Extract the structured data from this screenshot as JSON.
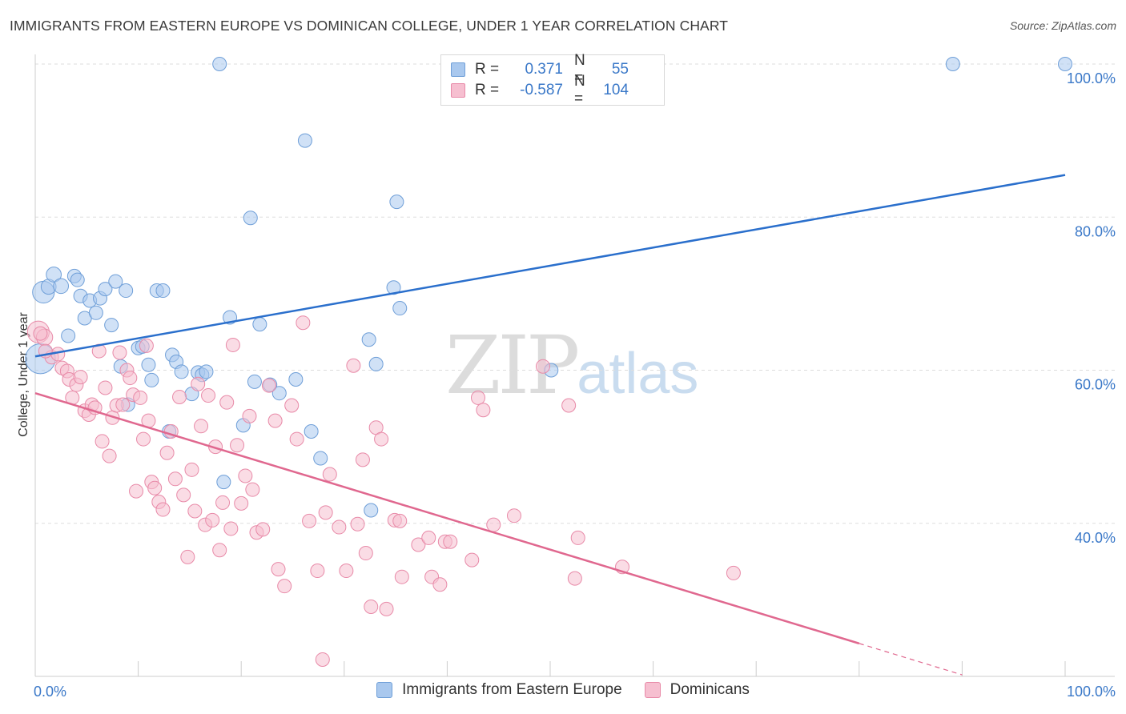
{
  "title": "IMMIGRANTS FROM EASTERN EUROPE VS DOMINICAN COLLEGE, UNDER 1 YEAR CORRELATION CHART",
  "source": "Source: ZipAtlas.com",
  "watermark": {
    "zip": "ZIP",
    "atlas": "atlas"
  },
  "legend": {
    "rows": [
      {
        "r_label": "R =",
        "r_value": "0.371",
        "n_label": "N =",
        "n_value": "55",
        "color": "#a9c8ee",
        "border": "#6f9fd8"
      },
      {
        "r_label": "R =",
        "r_value": "-0.587",
        "n_label": "N =",
        "n_value": "104",
        "color": "#f6bfd0",
        "border": "#e88aa8"
      }
    ]
  },
  "bottom_legend": [
    {
      "label": "Immigrants from Eastern Europe",
      "color": "#a9c8ee",
      "border": "#6f9fd8"
    },
    {
      "label": "Dominicans",
      "color": "#f6bfd0",
      "border": "#e88aa8"
    }
  ],
  "chart_data": {
    "type": "scatter",
    "title": "IMMIGRANTS FROM EASTERN EUROPE VS DOMINICAN COLLEGE, UNDER 1 YEAR CORRELATION CHART",
    "xlabel": "",
    "ylabel": "College, Under 1 year",
    "xlim": [
      0,
      100
    ],
    "ylim": [
      20,
      100
    ],
    "x_tick_labels": [
      "0.0%",
      "100.0%"
    ],
    "y_tick_labels": [
      "40.0%",
      "60.0%",
      "80.0%",
      "100.0%"
    ],
    "y_ticks": [
      40,
      60,
      80,
      100
    ],
    "grid": true,
    "legend_position": "top-center",
    "series": [
      {
        "name": "Immigrants from Eastern Europe",
        "color": "#6f9fd8",
        "fill": "#a9c8ee",
        "trend": {
          "x": [
            0,
            100
          ],
          "y": [
            61.8,
            85.5
          ],
          "color": "#2a6fcc"
        },
        "points": [
          [
            0.5,
            61.5,
            2.2
          ],
          [
            0.8,
            70.2,
            1.6
          ],
          [
            1.3,
            70.9,
            1.1
          ],
          [
            1.8,
            72.5,
            1.1
          ],
          [
            2.5,
            71.0,
            1.1
          ],
          [
            3.2,
            64.5,
            1.0
          ],
          [
            3.8,
            72.3,
            1.0
          ],
          [
            4.1,
            71.8,
            1.0
          ],
          [
            4.4,
            69.7,
            1.0
          ],
          [
            4.8,
            66.8,
            1.0
          ],
          [
            5.3,
            69.1,
            1.0
          ],
          [
            5.9,
            67.5,
            1.0
          ],
          [
            6.3,
            69.4,
            1.0
          ],
          [
            6.8,
            70.6,
            1.0
          ],
          [
            7.4,
            65.9,
            1.0
          ],
          [
            7.8,
            71.6,
            1.0
          ],
          [
            8.3,
            60.5,
            1.0
          ],
          [
            8.8,
            70.4,
            1.0
          ],
          [
            9.0,
            55.5,
            1.0
          ],
          [
            10.0,
            62.9,
            1.0
          ],
          [
            10.4,
            63.1,
            1.0
          ],
          [
            11.0,
            60.7,
            1.0
          ],
          [
            11.3,
            58.7,
            1.0
          ],
          [
            11.8,
            70.4,
            1.0
          ],
          [
            12.4,
            70.4,
            1.0
          ],
          [
            13.0,
            52.0,
            1.0
          ],
          [
            13.3,
            62.0,
            1.0
          ],
          [
            13.7,
            61.1,
            1.0
          ],
          [
            14.2,
            59.8,
            1.0
          ],
          [
            15.2,
            56.9,
            1.0
          ],
          [
            15.8,
            59.7,
            1.0
          ],
          [
            16.2,
            59.4,
            1.0
          ],
          [
            16.6,
            59.8,
            1.0
          ],
          [
            17.9,
            100.0,
            1.0
          ],
          [
            18.3,
            45.4,
            1.0
          ],
          [
            18.9,
            66.9,
            1.0
          ],
          [
            20.2,
            52.8,
            1.0
          ],
          [
            20.9,
            79.9,
            1.0
          ],
          [
            21.3,
            58.5,
            1.0
          ],
          [
            21.8,
            66.0,
            1.0
          ],
          [
            22.8,
            58.1,
            1.0
          ],
          [
            23.7,
            57.0,
            1.0
          ],
          [
            25.3,
            58.8,
            1.0
          ],
          [
            26.2,
            90.0,
            1.0
          ],
          [
            26.8,
            52.0,
            1.0
          ],
          [
            27.7,
            48.5,
            1.0
          ],
          [
            32.4,
            64.0,
            1.0
          ],
          [
            32.6,
            41.7,
            1.0
          ],
          [
            33.1,
            60.8,
            1.0
          ],
          [
            34.8,
            70.8,
            1.0
          ],
          [
            35.1,
            82.0,
            1.0
          ],
          [
            35.4,
            68.1,
            1.0
          ],
          [
            50.1,
            60.0,
            1.0
          ],
          [
            89.1,
            100.0,
            1.0
          ],
          [
            100.0,
            100.0,
            1.0
          ]
        ]
      },
      {
        "name": "Dominicans",
        "color": "#e88aa8",
        "fill": "#f6bfd0",
        "trend": {
          "x": [
            0,
            80
          ],
          "y": [
            57.0,
            24.3
          ],
          "dashed_to": [
            90,
            20.2
          ],
          "color": "#e0688f"
        },
        "points": [
          [
            0.3,
            65.0,
            1.6
          ],
          [
            0.9,
            64.3,
            1.2
          ],
          [
            1.6,
            61.7,
            1.0
          ],
          [
            2.2,
            62.1,
            1.0
          ],
          [
            2.6,
            60.3,
            1.0
          ],
          [
            3.1,
            59.9,
            1.0
          ],
          [
            3.3,
            58.8,
            1.0
          ],
          [
            3.6,
            56.4,
            1.0
          ],
          [
            4.0,
            58.1,
            1.0
          ],
          [
            4.4,
            59.1,
            1.0
          ],
          [
            4.8,
            54.7,
            1.0
          ],
          [
            5.2,
            54.2,
            1.0
          ],
          [
            5.5,
            55.5,
            1.0
          ],
          [
            5.8,
            55.1,
            1.0
          ],
          [
            6.2,
            62.5,
            1.0
          ],
          [
            6.5,
            50.7,
            1.0
          ],
          [
            6.8,
            57.7,
            1.0
          ],
          [
            7.2,
            48.8,
            1.0
          ],
          [
            7.5,
            53.8,
            1.0
          ],
          [
            7.9,
            55.4,
            1.0
          ],
          [
            8.2,
            62.3,
            1.0
          ],
          [
            8.5,
            55.5,
            1.0
          ],
          [
            8.9,
            60.0,
            1.0
          ],
          [
            9.2,
            59.0,
            1.0
          ],
          [
            9.5,
            56.8,
            1.0
          ],
          [
            9.8,
            44.2,
            1.0
          ],
          [
            10.2,
            56.4,
            1.0
          ],
          [
            10.5,
            51.0,
            1.0
          ],
          [
            10.8,
            63.2,
            1.0
          ],
          [
            11.0,
            53.4,
            1.0
          ],
          [
            11.3,
            45.4,
            1.0
          ],
          [
            11.6,
            44.6,
            1.0
          ],
          [
            12.0,
            42.8,
            1.0
          ],
          [
            12.4,
            41.8,
            1.0
          ],
          [
            12.8,
            49.2,
            1.0
          ],
          [
            13.2,
            52.0,
            1.0
          ],
          [
            13.6,
            45.8,
            1.0
          ],
          [
            14.0,
            56.5,
            1.0
          ],
          [
            14.4,
            43.7,
            1.0
          ],
          [
            14.8,
            35.6,
            1.0
          ],
          [
            15.2,
            47.0,
            1.0
          ],
          [
            15.5,
            41.6,
            1.0
          ],
          [
            15.8,
            58.2,
            1.0
          ],
          [
            16.1,
            52.7,
            1.0
          ],
          [
            16.5,
            39.8,
            1.0
          ],
          [
            16.8,
            56.7,
            1.0
          ],
          [
            17.2,
            40.4,
            1.0
          ],
          [
            17.5,
            50.0,
            1.0
          ],
          [
            17.9,
            36.5,
            1.0
          ],
          [
            18.2,
            42.7,
            1.0
          ],
          [
            18.6,
            55.8,
            1.0
          ],
          [
            19.0,
            39.3,
            1.0
          ],
          [
            19.2,
            63.3,
            1.0
          ],
          [
            19.6,
            50.2,
            1.0
          ],
          [
            20.0,
            42.6,
            1.0
          ],
          [
            20.4,
            46.2,
            1.0
          ],
          [
            20.8,
            54.0,
            1.0
          ],
          [
            21.1,
            44.4,
            1.0
          ],
          [
            21.5,
            38.8,
            1.0
          ],
          [
            22.1,
            39.2,
            1.0
          ],
          [
            22.7,
            58.0,
            1.0
          ],
          [
            23.3,
            53.4,
            1.0
          ],
          [
            23.6,
            34.0,
            1.0
          ],
          [
            24.2,
            31.8,
            1.0
          ],
          [
            24.9,
            55.4,
            1.0
          ],
          [
            25.4,
            51.0,
            1.0
          ],
          [
            26.0,
            66.2,
            1.0
          ],
          [
            26.6,
            40.3,
            1.0
          ],
          [
            27.4,
            33.8,
            1.0
          ],
          [
            27.9,
            22.2,
            1.0
          ],
          [
            28.2,
            41.4,
            1.0
          ],
          [
            28.6,
            46.4,
            1.0
          ],
          [
            29.5,
            39.5,
            1.0
          ],
          [
            30.2,
            33.8,
            1.0
          ],
          [
            30.9,
            60.6,
            1.0
          ],
          [
            31.3,
            39.9,
            1.0
          ],
          [
            31.8,
            48.3,
            1.0
          ],
          [
            32.1,
            36.1,
            1.0
          ],
          [
            32.6,
            29.1,
            1.0
          ],
          [
            33.1,
            52.5,
            1.0
          ],
          [
            33.6,
            51.0,
            1.0
          ],
          [
            34.1,
            28.8,
            1.0
          ],
          [
            34.9,
            40.4,
            1.0
          ],
          [
            35.4,
            40.3,
            1.0
          ],
          [
            35.6,
            33.0,
            1.0
          ],
          [
            37.2,
            37.2,
            1.0
          ],
          [
            38.2,
            38.1,
            1.0
          ],
          [
            38.5,
            33.0,
            1.0
          ],
          [
            39.3,
            32.0,
            1.0
          ],
          [
            39.8,
            37.6,
            1.0
          ],
          [
            40.3,
            37.6,
            1.0
          ],
          [
            42.4,
            35.2,
            1.0
          ],
          [
            43.0,
            56.4,
            1.0
          ],
          [
            43.5,
            54.8,
            1.0
          ],
          [
            44.5,
            39.8,
            1.0
          ],
          [
            46.5,
            41.0,
            1.0
          ],
          [
            49.3,
            60.5,
            1.0
          ],
          [
            51.8,
            55.4,
            1.0
          ],
          [
            52.4,
            32.8,
            1.0
          ],
          [
            52.7,
            38.1,
            1.0
          ],
          [
            57.0,
            34.3,
            1.0
          ],
          [
            67.8,
            33.5,
            1.0
          ],
          [
            0.5,
            64.8,
            1.0
          ],
          [
            1.0,
            62.5,
            1.0
          ]
        ]
      }
    ]
  }
}
